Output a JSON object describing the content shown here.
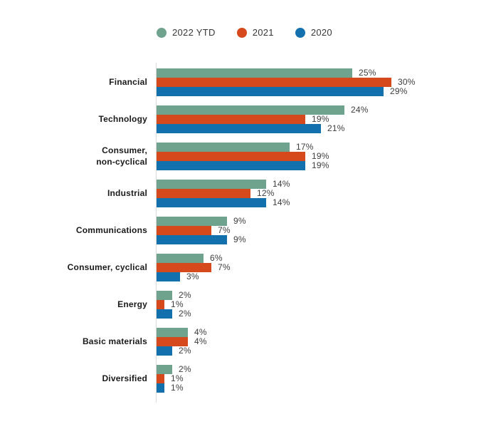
{
  "chart_data": {
    "type": "bar",
    "orientation": "horizontal",
    "title": "",
    "xlabel": "",
    "ylabel": "",
    "grid": false,
    "legend_position": "top",
    "value_suffix": "%",
    "xlim": [
      0,
      30
    ],
    "categories": [
      "Financial",
      "Technology",
      "Consumer,\nnon-cyclical",
      "Industrial",
      "Communications",
      "Consumer, cyclical",
      "Energy",
      "Basic materials",
      "Diversified"
    ],
    "series": [
      {
        "name": "2022 YTD",
        "color": "#70a38e",
        "values": [
          25,
          24,
          17,
          14,
          9,
          6,
          2,
          4,
          2
        ]
      },
      {
        "name": "2021",
        "color": "#d5491d",
        "values": [
          30,
          19,
          19,
          12,
          7,
          7,
          1,
          4,
          1
        ]
      },
      {
        "name": "2020",
        "color": "#1270ad",
        "values": [
          29,
          21,
          19,
          14,
          9,
          3,
          2,
          2,
          1
        ]
      }
    ],
    "value_labels": [
      [
        "25%",
        "30%",
        "29%"
      ],
      [
        "24%",
        "19%",
        "21%"
      ],
      [
        "17%",
        "19%",
        "19%"
      ],
      [
        "14%",
        "12%",
        "14%"
      ],
      [
        "9%",
        "7%",
        "9%"
      ],
      [
        "6%",
        "7%",
        "3%"
      ],
      [
        "2%",
        "1%",
        "2%"
      ],
      [
        "4%",
        "4%",
        "2%"
      ],
      [
        "2%",
        "1%",
        "1%"
      ]
    ],
    "axis_color": "#dadada"
  }
}
